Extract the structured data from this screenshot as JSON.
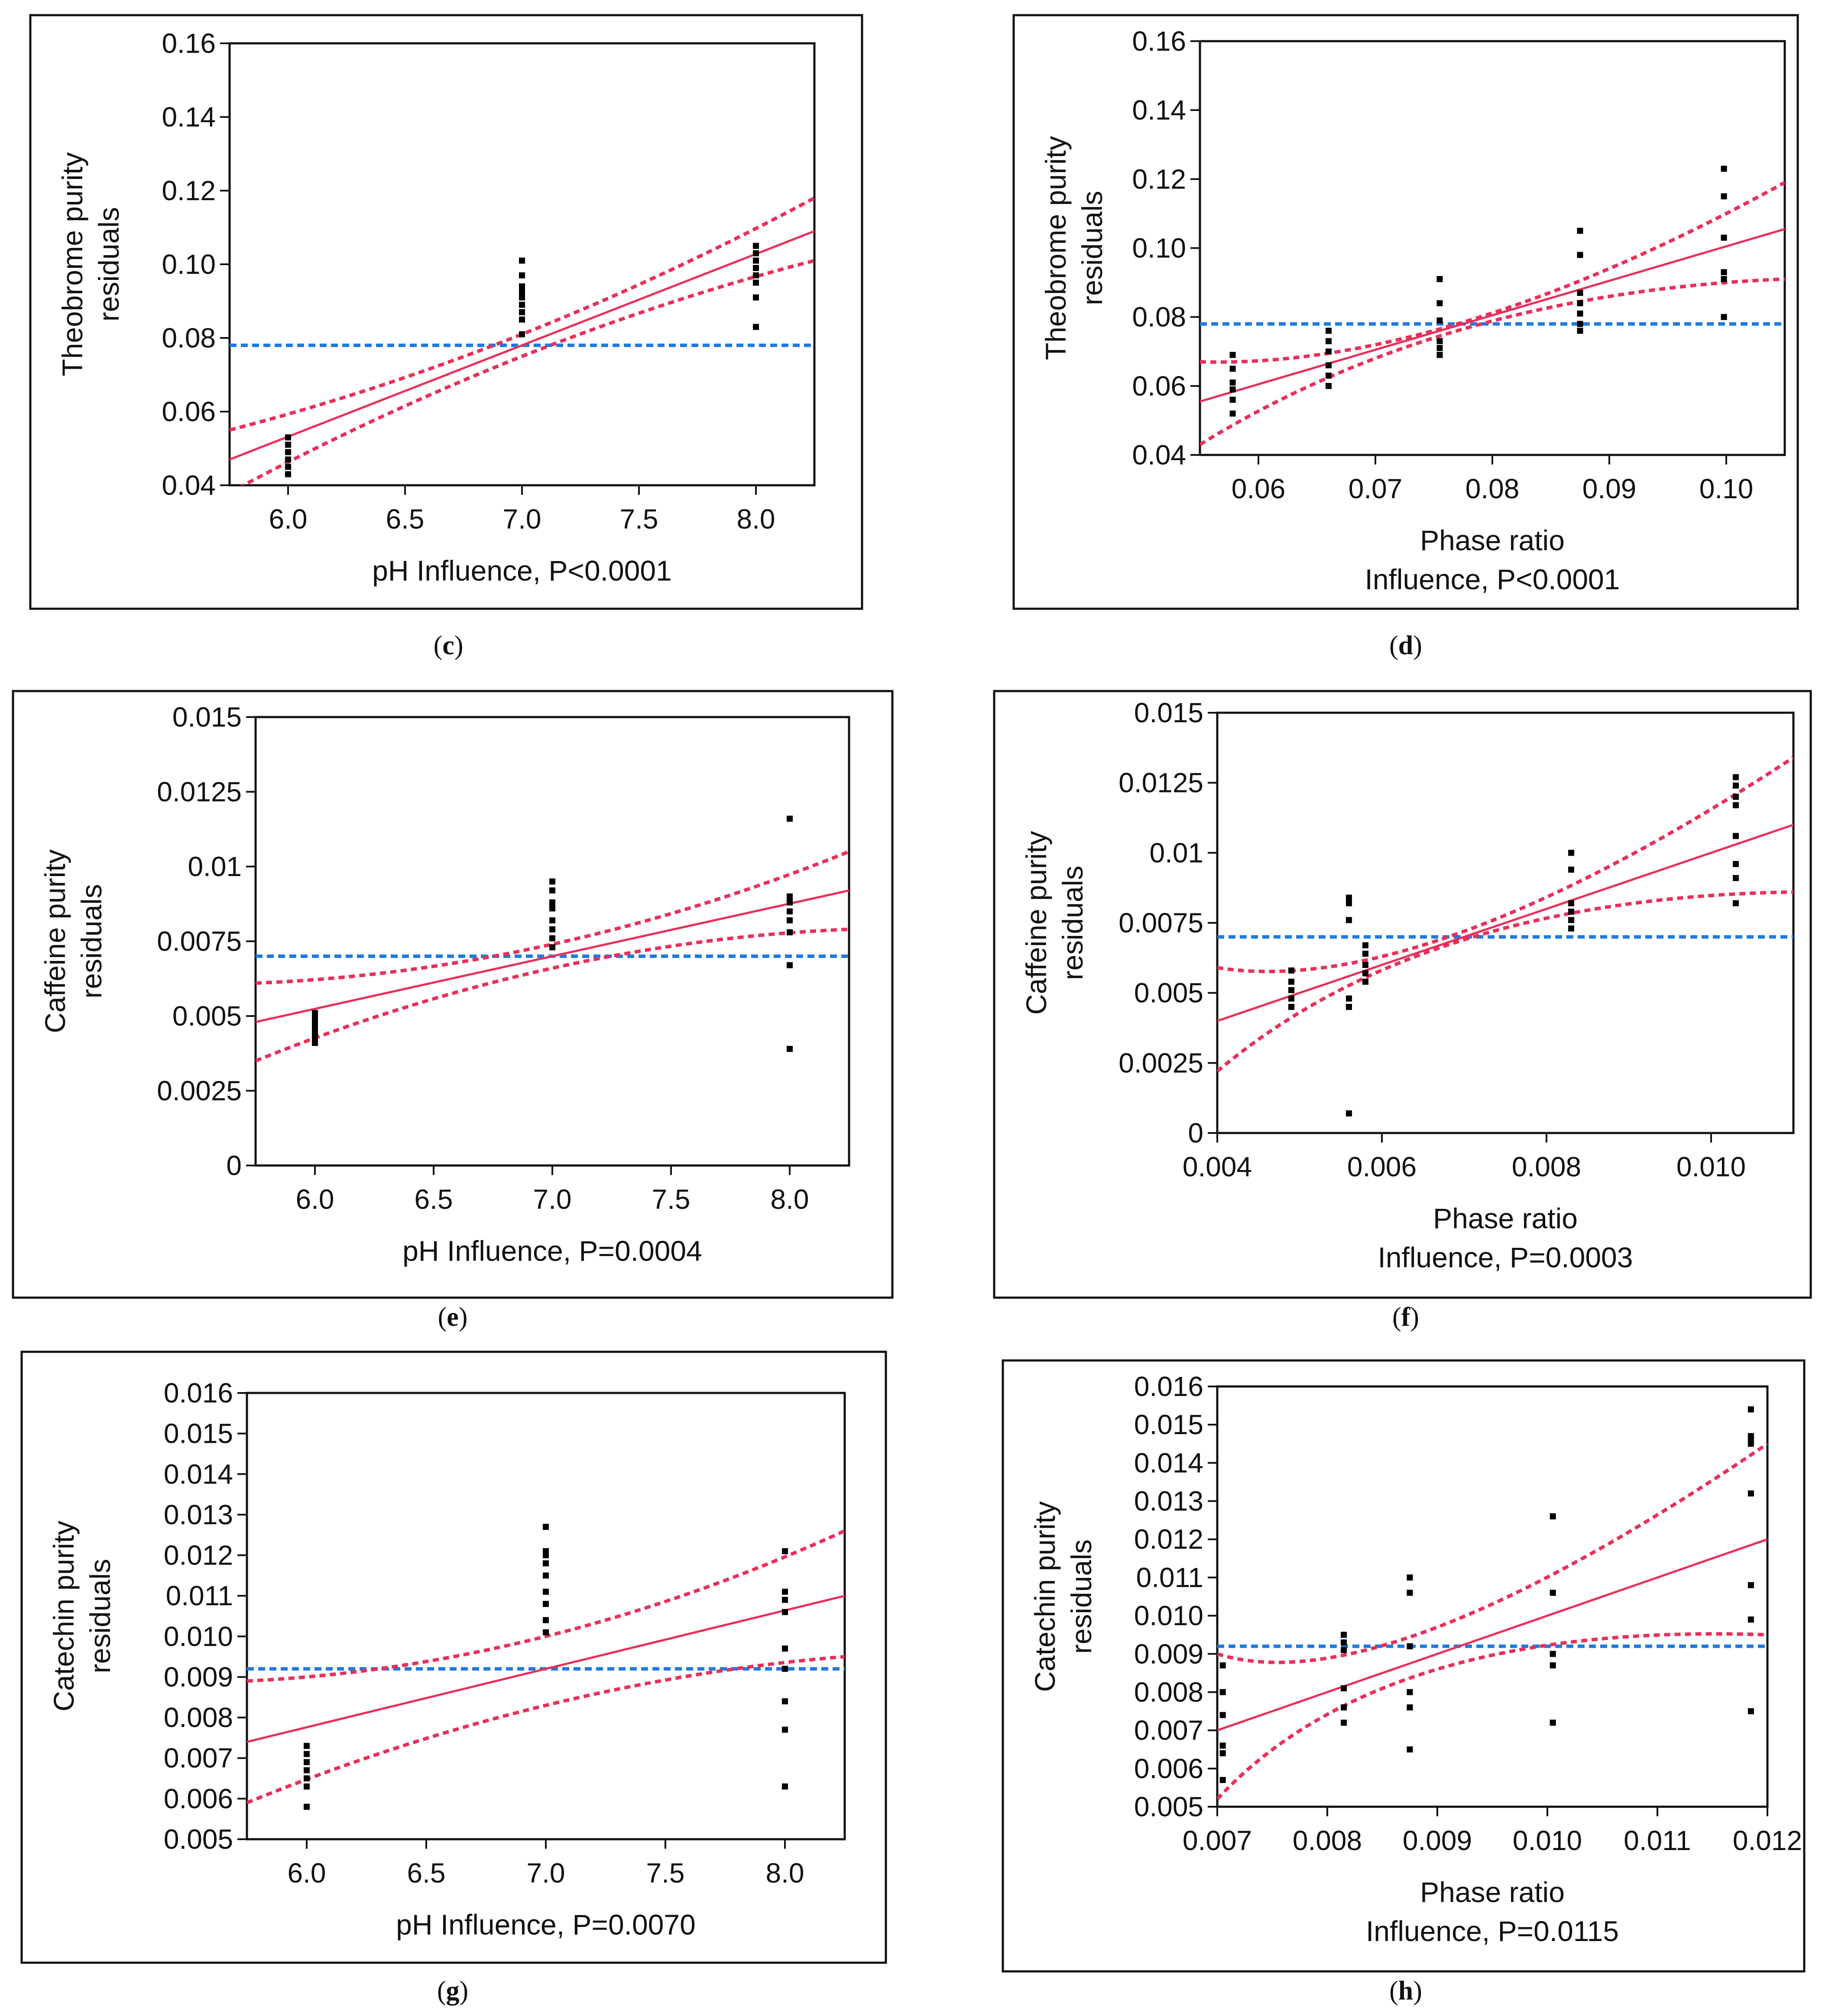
{
  "colors": {
    "fit": "#e8305a",
    "mean": "#1f7ae0",
    "point": "#000000",
    "frame": "#111111"
  },
  "chart_data": [
    {
      "id": "c",
      "type": "scatter",
      "caption": "c",
      "ylabel_lines": [
        "Theobrome purity",
        "residuals"
      ],
      "xlabel_lines": [
        "pH Influence, P<0.0001"
      ],
      "xlim": [
        5.75,
        8.25
      ],
      "ylim": [
        0.04,
        0.16
      ],
      "xticks": [
        6.0,
        6.5,
        7.0,
        7.5,
        8.0
      ],
      "xtick_labels": [
        "6.0",
        "6.5",
        "7.0",
        "7.5",
        "8.0"
      ],
      "yticks": [
        0.04,
        0.06,
        0.08,
        0.1,
        0.12,
        0.14,
        0.16
      ],
      "ytick_labels": [
        "0.04",
        "0.06",
        "0.08",
        "0.10",
        "0.12",
        "0.14",
        "0.16"
      ],
      "mean": 0.078,
      "fit_line": [
        [
          5.75,
          0.047
        ],
        [
          8.25,
          0.109
        ]
      ],
      "upper_band": [
        [
          5.75,
          0.055
        ],
        [
          7.0,
          0.081
        ],
        [
          8.25,
          0.118
        ]
      ],
      "lower_band": [
        [
          5.75,
          0.038
        ],
        [
          7.0,
          0.075
        ],
        [
          8.25,
          0.101
        ]
      ],
      "points": [
        [
          6.0,
          0.043
        ],
        [
          6.0,
          0.045
        ],
        [
          6.0,
          0.047
        ],
        [
          6.0,
          0.049
        ],
        [
          6.0,
          0.051
        ],
        [
          6.0,
          0.053
        ],
        [
          7.0,
          0.081
        ],
        [
          7.0,
          0.085
        ],
        [
          7.0,
          0.087
        ],
        [
          7.0,
          0.089
        ],
        [
          7.0,
          0.091
        ],
        [
          7.0,
          0.092
        ],
        [
          7.0,
          0.093
        ],
        [
          7.0,
          0.094
        ],
        [
          7.0,
          0.097
        ],
        [
          7.0,
          0.101
        ],
        [
          8.0,
          0.083
        ],
        [
          8.0,
          0.091
        ],
        [
          8.0,
          0.095
        ],
        [
          8.0,
          0.097
        ],
        [
          8.0,
          0.099
        ],
        [
          8.0,
          0.101
        ],
        [
          8.0,
          0.103
        ],
        [
          8.0,
          0.105
        ]
      ]
    },
    {
      "id": "d",
      "type": "scatter",
      "caption": "d",
      "ylabel_lines": [
        "Theobrome purity",
        "residuals"
      ],
      "xlabel_lines": [
        "Phase ratio",
        "Influence, P<0.0001"
      ],
      "xlim": [
        0.055,
        0.105
      ],
      "ylim": [
        0.04,
        0.16
      ],
      "xticks": [
        0.06,
        0.07,
        0.08,
        0.09,
        0.1
      ],
      "xtick_labels": [
        "0.06",
        "0.07",
        "0.08",
        "0.09",
        "0.10"
      ],
      "yticks": [
        0.04,
        0.06,
        0.08,
        0.1,
        0.12,
        0.14,
        0.16
      ],
      "ytick_labels": [
        "0.04",
        "0.06",
        "0.08",
        "0.10",
        "0.12",
        "0.14",
        "0.16"
      ],
      "mean": 0.078,
      "fit_line": [
        [
          0.055,
          0.0555
        ],
        [
          0.105,
          0.1055
        ]
      ],
      "upper_band": [
        [
          0.055,
          0.067
        ],
        [
          0.078,
          0.079
        ],
        [
          0.105,
          0.119
        ]
      ],
      "lower_band": [
        [
          0.055,
          0.043
        ],
        [
          0.078,
          0.077
        ],
        [
          0.105,
          0.091
        ]
      ],
      "points": [
        [
          0.0578,
          0.052
        ],
        [
          0.0578,
          0.056
        ],
        [
          0.0578,
          0.059
        ],
        [
          0.0578,
          0.061
        ],
        [
          0.0578,
          0.065
        ],
        [
          0.0578,
          0.069
        ],
        [
          0.066,
          0.06
        ],
        [
          0.066,
          0.063
        ],
        [
          0.066,
          0.066
        ],
        [
          0.066,
          0.07
        ],
        [
          0.066,
          0.073
        ],
        [
          0.066,
          0.076
        ],
        [
          0.0755,
          0.069
        ],
        [
          0.0755,
          0.071
        ],
        [
          0.0755,
          0.073
        ],
        [
          0.0755,
          0.079
        ],
        [
          0.0755,
          0.084
        ],
        [
          0.0755,
          0.091
        ],
        [
          0.0875,
          0.076
        ],
        [
          0.0875,
          0.078
        ],
        [
          0.0875,
          0.081
        ],
        [
          0.0875,
          0.084
        ],
        [
          0.0875,
          0.087
        ],
        [
          0.0875,
          0.098
        ],
        [
          0.0875,
          0.105
        ],
        [
          0.0998,
          0.08
        ],
        [
          0.0998,
          0.091
        ],
        [
          0.0998,
          0.093
        ],
        [
          0.0998,
          0.103
        ],
        [
          0.0998,
          0.115
        ],
        [
          0.0998,
          0.123
        ]
      ]
    },
    {
      "id": "e",
      "type": "scatter",
      "caption": "e",
      "ylabel_lines": [
        "Caffeine purity",
        "residuals"
      ],
      "xlabel_lines": [
        "pH Influence, P=0.0004"
      ],
      "xlim": [
        5.75,
        8.25
      ],
      "ylim": [
        0,
        0.015
      ],
      "xticks": [
        6.0,
        6.5,
        7.0,
        7.5,
        8.0
      ],
      "xtick_labels": [
        "6.0",
        "6.5",
        "7.0",
        "7.5",
        "8.0"
      ],
      "yticks": [
        0,
        0.0025,
        0.005,
        0.0075,
        0.01,
        0.0125,
        0.015
      ],
      "ytick_labels": [
        "0",
        "0.0025",
        "0.005",
        "0.0075",
        "0.01",
        "0.0125",
        "0.015"
      ],
      "mean": 0.007,
      "fit_line": [
        [
          5.75,
          0.0048
        ],
        [
          8.25,
          0.0092
        ]
      ],
      "upper_band": [
        [
          5.75,
          0.0061
        ],
        [
          7.0,
          0.0074
        ],
        [
          8.25,
          0.0105
        ]
      ],
      "lower_band": [
        [
          5.75,
          0.0035
        ],
        [
          7.0,
          0.0066
        ],
        [
          8.25,
          0.0079
        ]
      ],
      "points": [
        [
          6.0,
          0.0041
        ],
        [
          6.0,
          0.0043
        ],
        [
          6.0,
          0.0045
        ],
        [
          6.0,
          0.0047
        ],
        [
          6.0,
          0.0049
        ],
        [
          6.0,
          0.0051
        ],
        [
          7.0,
          0.0073
        ],
        [
          7.0,
          0.0076
        ],
        [
          7.0,
          0.0079
        ],
        [
          7.0,
          0.0082
        ],
        [
          7.0,
          0.0086
        ],
        [
          7.0,
          0.0088
        ],
        [
          7.0,
          0.0092
        ],
        [
          7.0,
          0.0095
        ],
        [
          8.0,
          0.0039
        ],
        [
          8.0,
          0.0067
        ],
        [
          8.0,
          0.0078
        ],
        [
          8.0,
          0.0082
        ],
        [
          8.0,
          0.0085
        ],
        [
          8.0,
          0.0088
        ],
        [
          8.0,
          0.009
        ],
        [
          8.0,
          0.0116
        ]
      ]
    },
    {
      "id": "f",
      "type": "scatter",
      "caption": "f",
      "ylabel_lines": [
        "Caffeine purity",
        "residuals"
      ],
      "xlabel_lines": [
        "Phase ratio",
        "Influence, P=0.0003"
      ],
      "xlim": [
        0.004,
        0.011
      ],
      "ylim": [
        0,
        0.015
      ],
      "xticks": [
        0.004,
        0.006,
        0.008,
        0.01
      ],
      "xtick_labels": [
        "0.004",
        "0.006",
        "0.008",
        "0.010"
      ],
      "yticks": [
        0,
        0.0025,
        0.005,
        0.0075,
        0.01,
        0.0125,
        0.015
      ],
      "ytick_labels": [
        "0",
        "0.0025",
        "0.005",
        "0.0075",
        "0.01",
        "0.0125",
        "0.015"
      ],
      "mean": 0.007,
      "fit_line": [
        [
          0.004,
          0.004
        ],
        [
          0.011,
          0.011
        ]
      ],
      "upper_band": [
        [
          0.004,
          0.0059
        ],
        [
          0.007,
          0.0072
        ],
        [
          0.011,
          0.0134
        ]
      ],
      "lower_band": [
        [
          0.004,
          0.0022
        ],
        [
          0.007,
          0.0069
        ],
        [
          0.011,
          0.0086
        ]
      ],
      "points": [
        [
          0.0049,
          0.0045
        ],
        [
          0.0049,
          0.0048
        ],
        [
          0.0049,
          0.0051
        ],
        [
          0.0049,
          0.0054
        ],
        [
          0.0049,
          0.0058
        ],
        [
          0.0056,
          0.0007
        ],
        [
          0.0056,
          0.0045
        ],
        [
          0.0056,
          0.0048
        ],
        [
          0.0056,
          0.0076
        ],
        [
          0.0056,
          0.0082
        ],
        [
          0.0056,
          0.0084
        ],
        [
          0.0058,
          0.0054
        ],
        [
          0.0058,
          0.0057
        ],
        [
          0.0058,
          0.006
        ],
        [
          0.0058,
          0.0064
        ],
        [
          0.0058,
          0.0067
        ],
        [
          0.0083,
          0.0073
        ],
        [
          0.0083,
          0.0076
        ],
        [
          0.0083,
          0.0079
        ],
        [
          0.0083,
          0.0082
        ],
        [
          0.0083,
          0.0094
        ],
        [
          0.0083,
          0.01
        ],
        [
          0.0103,
          0.0082
        ],
        [
          0.0103,
          0.0091
        ],
        [
          0.0103,
          0.0096
        ],
        [
          0.0103,
          0.0106
        ],
        [
          0.0103,
          0.0117
        ],
        [
          0.0103,
          0.012
        ],
        [
          0.0103,
          0.0124
        ],
        [
          0.0103,
          0.0127
        ]
      ]
    },
    {
      "id": "g",
      "type": "scatter",
      "caption": "g",
      "ylabel_lines": [
        "Catechin purity",
        "residuals"
      ],
      "xlabel_lines": [
        "pH Influence, P=0.0070"
      ],
      "xlim": [
        5.75,
        8.25
      ],
      "ylim": [
        0.005,
        0.016
      ],
      "xticks": [
        6.0,
        6.5,
        7.0,
        7.5,
        8.0
      ],
      "xtick_labels": [
        "6.0",
        "6.5",
        "7.0",
        "7.5",
        "8.0"
      ],
      "yticks": [
        0.005,
        0.006,
        0.007,
        0.008,
        0.009,
        0.01,
        0.011,
        0.012,
        0.013,
        0.014,
        0.015,
        0.016
      ],
      "ytick_labels": [
        "0.005",
        "0.006",
        "0.007",
        "0.008",
        "0.009",
        "0.010",
        "0.011",
        "0.012",
        "0.013",
        "0.014",
        "0.015",
        "0.016"
      ],
      "mean": 0.0092,
      "fit_line": [
        [
          5.75,
          0.0074
        ],
        [
          8.25,
          0.011
        ]
      ],
      "upper_band": [
        [
          5.75,
          0.0089
        ],
        [
          7.0,
          0.01
        ],
        [
          8.25,
          0.0126
        ]
      ],
      "lower_band": [
        [
          5.75,
          0.0059
        ],
        [
          7.0,
          0.0083
        ],
        [
          8.25,
          0.0095
        ]
      ],
      "points": [
        [
          6.0,
          0.0058
        ],
        [
          6.0,
          0.0063
        ],
        [
          6.0,
          0.0065
        ],
        [
          6.0,
          0.0067
        ],
        [
          6.0,
          0.0069
        ],
        [
          6.0,
          0.0071
        ],
        [
          6.0,
          0.0073
        ],
        [
          7.0,
          0.0101
        ],
        [
          7.0,
          0.0104
        ],
        [
          7.0,
          0.0108
        ],
        [
          7.0,
          0.0111
        ],
        [
          7.0,
          0.0115
        ],
        [
          7.0,
          0.0118
        ],
        [
          7.0,
          0.012
        ],
        [
          7.0,
          0.0121
        ],
        [
          7.0,
          0.0127
        ],
        [
          8.0,
          0.0063
        ],
        [
          8.0,
          0.0077
        ],
        [
          8.0,
          0.0084
        ],
        [
          8.0,
          0.0092
        ],
        [
          8.0,
          0.0097
        ],
        [
          8.0,
          0.0106
        ],
        [
          8.0,
          0.0109
        ],
        [
          8.0,
          0.0111
        ],
        [
          8.0,
          0.0121
        ]
      ]
    },
    {
      "id": "h",
      "type": "scatter",
      "caption": "h",
      "ylabel_lines": [
        "Catechin purity",
        "residuals"
      ],
      "xlabel_lines": [
        "Phase ratio",
        "Influence, P=0.0115"
      ],
      "xlim": [
        0.007,
        0.012
      ],
      "ylim": [
        0.005,
        0.016
      ],
      "xticks": [
        0.007,
        0.008,
        0.009,
        0.01,
        0.011,
        0.012
      ],
      "xtick_labels": [
        "0.007",
        "0.008",
        "0.009",
        "0.010",
        "0.011",
        "0.012"
      ],
      "yticks": [
        0.005,
        0.006,
        0.007,
        0.008,
        0.009,
        0.01,
        0.011,
        0.012,
        0.013,
        0.014,
        0.015,
        0.016
      ],
      "ytick_labels": [
        "0.005",
        "0.006",
        "0.007",
        "0.008",
        "0.009",
        "0.010",
        "0.011",
        "0.012",
        "0.013",
        "0.014",
        "0.015",
        "0.016"
      ],
      "mean": 0.0092,
      "fit_line": [
        [
          0.007,
          0.007
        ],
        [
          0.012,
          0.012
        ]
      ],
      "upper_band": [
        [
          0.007,
          0.009
        ],
        [
          0.009,
          0.0097
        ],
        [
          0.012,
          0.0145
        ]
      ],
      "lower_band": [
        [
          0.007,
          0.0052
        ],
        [
          0.009,
          0.0086
        ],
        [
          0.012,
          0.0095
        ]
      ],
      "points": [
        [
          0.00705,
          0.0057
        ],
        [
          0.00705,
          0.0064
        ],
        [
          0.00705,
          0.0066
        ],
        [
          0.00705,
          0.0074
        ],
        [
          0.00705,
          0.008
        ],
        [
          0.00705,
          0.0087
        ],
        [
          0.00815,
          0.0072
        ],
        [
          0.00815,
          0.0076
        ],
        [
          0.00815,
          0.0081
        ],
        [
          0.00815,
          0.0091
        ],
        [
          0.00815,
          0.0093
        ],
        [
          0.00815,
          0.0095
        ],
        [
          0.00875,
          0.0065
        ],
        [
          0.00875,
          0.0076
        ],
        [
          0.00875,
          0.008
        ],
        [
          0.00875,
          0.0092
        ],
        [
          0.00875,
          0.0106
        ],
        [
          0.00875,
          0.011
        ],
        [
          0.01005,
          0.0072
        ],
        [
          0.01005,
          0.0087
        ],
        [
          0.01005,
          0.009
        ],
        [
          0.01005,
          0.0106
        ],
        [
          0.01005,
          0.0126
        ],
        [
          0.01185,
          0.0075
        ],
        [
          0.01185,
          0.0099
        ],
        [
          0.01185,
          0.0108
        ],
        [
          0.01185,
          0.0132
        ],
        [
          0.01185,
          0.0145
        ],
        [
          0.01185,
          0.0146
        ],
        [
          0.01185,
          0.0147
        ],
        [
          0.01185,
          0.0154
        ]
      ]
    }
  ]
}
